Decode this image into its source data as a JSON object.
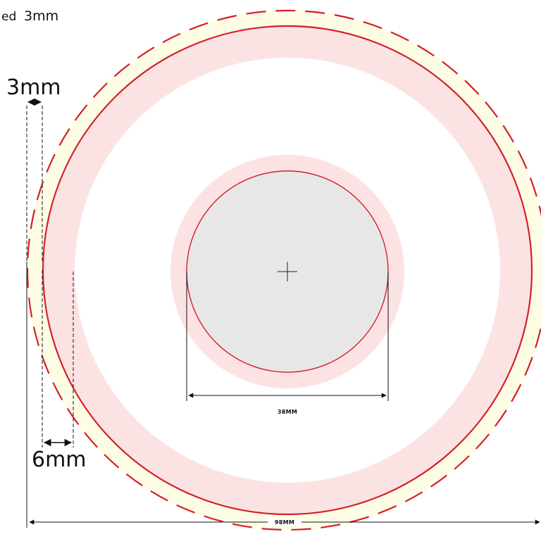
{
  "header": {
    "prefix": "ed",
    "value": "3mm"
  },
  "dimensions": {
    "bleed_label": "3mm",
    "safe_label": "6mm",
    "hole_label": "38MM",
    "overall_label": "98MM"
  },
  "colors": {
    "bleed_fill": "#fdfde6",
    "safe_zone": "#fbe3e4",
    "cut_line": "#d4202a",
    "hole_fill": "#e7e7e9",
    "guide": "#111111"
  }
}
